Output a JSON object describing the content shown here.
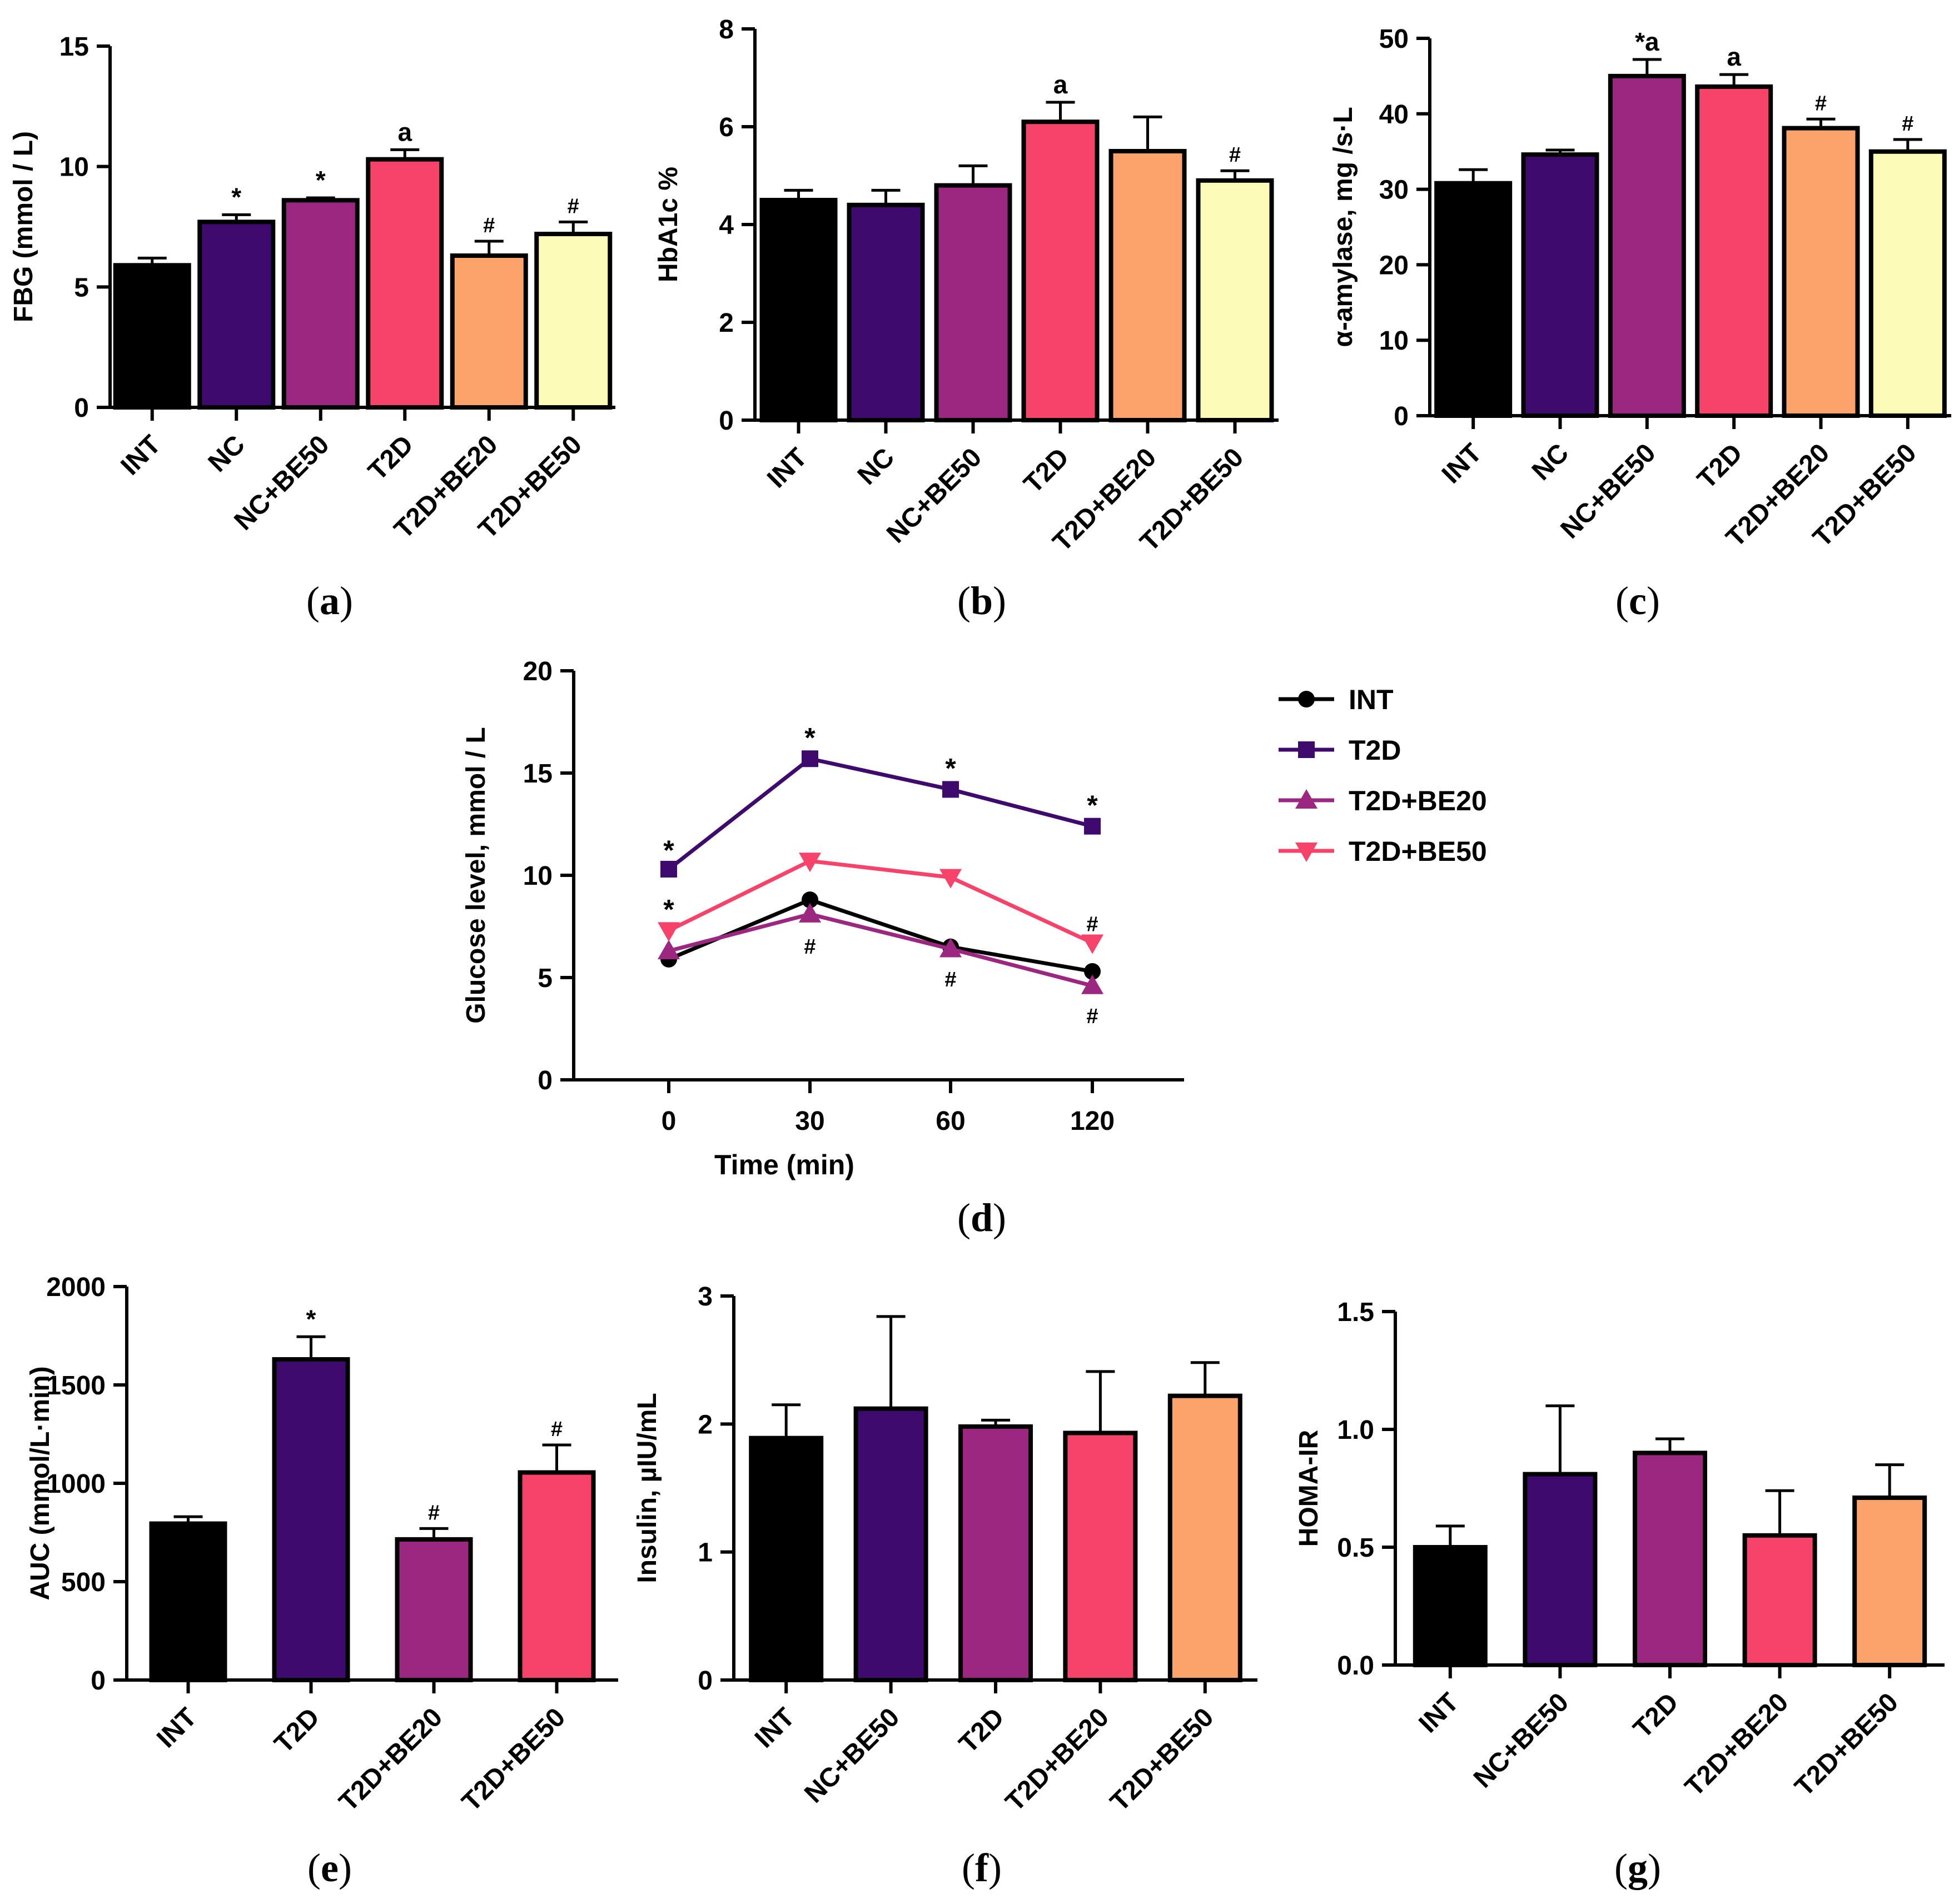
{
  "colors": {
    "INT": "#000000",
    "NC": "#3f0a6e",
    "NC+BE50": "#9c2780",
    "T2D": "#f7436a",
    "T2D+BE20": "#fca36c",
    "T2D+BE50": "#fcfcb8"
  },
  "chart_data": [
    {
      "id": "a",
      "type": "bar",
      "caption_letter": "a",
      "ylabel": "FBG (mmol / L)",
      "ylim": [
        0,
        15
      ],
      "yticks": [
        0,
        5,
        10,
        15
      ],
      "categories": [
        "INT",
        "NC",
        "NC+BE50",
        "T2D",
        "T2D+BE20",
        "T2D+BE50"
      ],
      "values": [
        5.9,
        7.7,
        8.6,
        10.3,
        6.3,
        7.2
      ],
      "errors": [
        0.3,
        0.3,
        0.1,
        0.4,
        0.6,
        0.5
      ],
      "annotations": [
        "",
        "*",
        "*",
        "a",
        "#",
        "#"
      ]
    },
    {
      "id": "b",
      "type": "bar",
      "caption_letter": "b",
      "ylabel": "HbA1c %",
      "ylim": [
        0,
        8
      ],
      "yticks": [
        0,
        2,
        4,
        6,
        8
      ],
      "categories": [
        "INT",
        "NC",
        "NC+BE50",
        "T2D",
        "T2D+BE20",
        "T2D+BE50"
      ],
      "values": [
        4.5,
        4.4,
        4.8,
        6.1,
        5.5,
        4.9
      ],
      "errors": [
        0.2,
        0.3,
        0.4,
        0.4,
        0.7,
        0.2
      ],
      "annotations": [
        "",
        "",
        "",
        "a",
        "",
        "#"
      ]
    },
    {
      "id": "c",
      "type": "bar",
      "caption_letter": "c",
      "ylabel": "α-amylase, mg /s·L",
      "ylim": [
        0,
        50
      ],
      "yticks": [
        0,
        10,
        20,
        30,
        40,
        50
      ],
      "categories": [
        "INT",
        "NC",
        "NC+BE50",
        "T2D",
        "T2D+BE20",
        "T2D+BE50"
      ],
      "values": [
        30.8,
        34.6,
        45.0,
        43.6,
        38.1,
        35.0
      ],
      "errors": [
        1.8,
        0.6,
        2.2,
        1.6,
        1.2,
        1.6
      ],
      "annotations": [
        "",
        "",
        "*a",
        "a",
        "#",
        "#"
      ]
    },
    {
      "id": "d",
      "type": "line",
      "caption_letter": "d",
      "ylabel": "Glucose level, mmol / L",
      "xlabel": "Time (min)",
      "ylim": [
        0,
        20
      ],
      "yticks": [
        0,
        5,
        10,
        15,
        20
      ],
      "x": [
        "0",
        "30",
        "60",
        "120"
      ],
      "series": [
        {
          "name": "INT",
          "values": [
            5.9,
            8.8,
            6.5,
            5.3
          ],
          "color": "#000000",
          "marker": "circle"
        },
        {
          "name": "T2D",
          "values": [
            10.3,
            15.7,
            14.2,
            12.4
          ],
          "color": "#3f0a6e",
          "marker": "square"
        },
        {
          "name": "T2D+BE20",
          "values": [
            6.3,
            8.1,
            6.4,
            4.6
          ],
          "color": "#9c2780",
          "marker": "triangle-up"
        },
        {
          "name": "T2D+BE50",
          "values": [
            7.3,
            10.7,
            9.9,
            6.7
          ],
          "color": "#f7436a",
          "marker": "triangle-down"
        }
      ],
      "annotations": [
        {
          "x": "0",
          "y": 11.2,
          "text": "*"
        },
        {
          "x": "0",
          "y": 8.3,
          "text": "*"
        },
        {
          "x": "30",
          "y": 16.7,
          "text": "*"
        },
        {
          "x": "60",
          "y": 15.2,
          "text": "*"
        },
        {
          "x": "120",
          "y": 13.4,
          "text": "*"
        },
        {
          "x": "30",
          "y": 6.6,
          "text": "#"
        },
        {
          "x": "60",
          "y": 5.0,
          "text": "#"
        },
        {
          "x": "120",
          "y": 7.7,
          "text": "#"
        },
        {
          "x": "120",
          "y": 3.2,
          "text": "#"
        }
      ]
    },
    {
      "id": "e",
      "type": "bar",
      "caption_letter": "e",
      "ylabel": "AUC (mmol/L·min)",
      "ylim": [
        0,
        2000
      ],
      "yticks": [
        0,
        500,
        1000,
        1500,
        2000
      ],
      "categories": [
        "INT",
        "T2D",
        "T2D+BE20",
        "T2D+BE50"
      ],
      "colorKeys": [
        "INT",
        "NC",
        "NC+BE50",
        "T2D"
      ],
      "values": [
        795,
        1630,
        715,
        1055
      ],
      "errors": [
        35,
        115,
        55,
        140
      ],
      "annotations": [
        "",
        "*",
        "#",
        "#"
      ]
    },
    {
      "id": "f",
      "type": "bar",
      "caption_letter": "f",
      "ylabel": "Insulin, µIU/mL",
      "ylim": [
        0,
        3
      ],
      "yticks": [
        0,
        1,
        2,
        3
      ],
      "categories": [
        "INT",
        "NC+BE50",
        "T2D",
        "T2D+BE20",
        "T2D+BE50"
      ],
      "colorKeys": [
        "INT",
        "NC",
        "NC+BE50",
        "T2D",
        "T2D+BE20"
      ],
      "values": [
        1.89,
        2.12,
        1.98,
        1.93,
        2.22
      ],
      "errors": [
        0.26,
        0.72,
        0.05,
        0.48,
        0.26
      ],
      "annotations": [
        "",
        "",
        "",
        "",
        ""
      ]
    },
    {
      "id": "g",
      "type": "bar",
      "caption_letter": "g",
      "ylabel": "HOMA-IR",
      "ylim": [
        0,
        1.5
      ],
      "yticks": [
        "0.0",
        "0.5",
        "1.0",
        "1.5"
      ],
      "categories": [
        "INT",
        "NC+BE50",
        "T2D",
        "T2D+BE20",
        "T2D+BE50"
      ],
      "colorKeys": [
        "INT",
        "NC",
        "NC+BE50",
        "T2D",
        "T2D+BE20"
      ],
      "values": [
        0.5,
        0.81,
        0.9,
        0.55,
        0.71
      ],
      "errors": [
        0.09,
        0.29,
        0.06,
        0.19,
        0.14
      ],
      "annotations": [
        "",
        "",
        "",
        "",
        ""
      ]
    }
  ]
}
